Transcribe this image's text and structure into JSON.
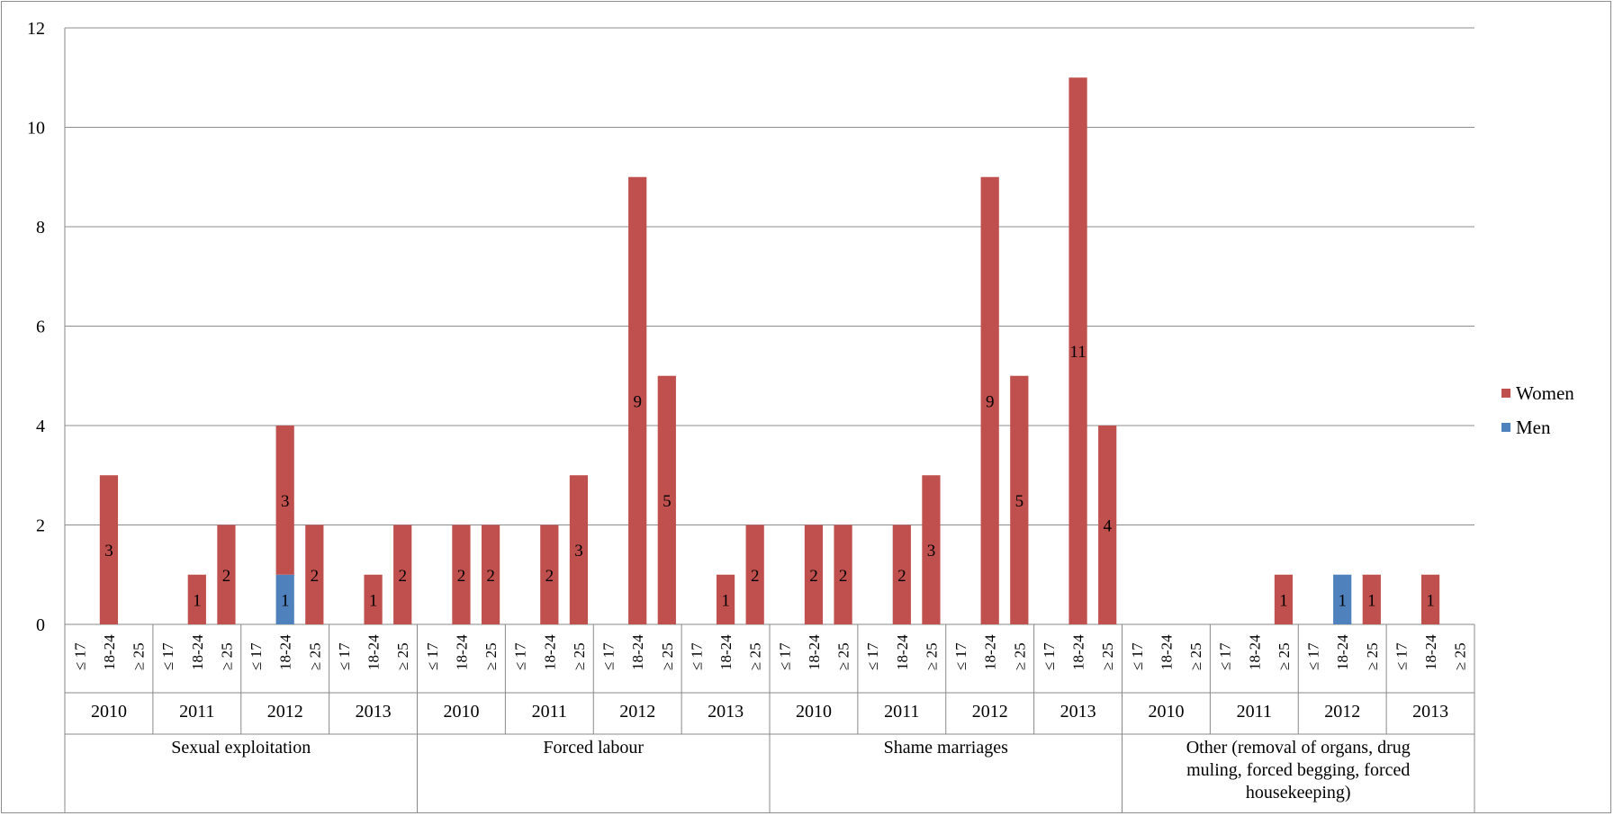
{
  "chart_data": {
    "type": "bar",
    "stacked": true,
    "title": "",
    "ylabel": "",
    "xlabel": "",
    "ylim": [
      0,
      12
    ],
    "y_ticks": [
      0,
      2,
      4,
      6,
      8,
      10,
      12
    ],
    "grid": true,
    "legend_position": "right",
    "groups": [
      "Sexual exploitation",
      "Forced labour",
      "Shame marriages",
      "Other (removal of organs, drug muling, forced begging, forced housekeeping)"
    ],
    "years": [
      "2010",
      "2011",
      "2012",
      "2013"
    ],
    "age_groups": [
      "≤ 17",
      "18-24",
      "≥ 25"
    ],
    "series": [
      {
        "name": "Women",
        "color": "#c0504d",
        "values": [
          [
            [
              0,
              3,
              0
            ],
            [
              0,
              1,
              2
            ],
            [
              0,
              3,
              2
            ],
            [
              0,
              1,
              2
            ]
          ],
          [
            [
              0,
              2,
              2
            ],
            [
              0,
              2,
              3
            ],
            [
              0,
              9,
              5
            ],
            [
              0,
              1,
              2
            ]
          ],
          [
            [
              0,
              2,
              2
            ],
            [
              0,
              2,
              3
            ],
            [
              0,
              9,
              5
            ],
            [
              0,
              11,
              4
            ]
          ],
          [
            [
              0,
              0,
              0
            ],
            [
              0,
              0,
              1
            ],
            [
              0,
              0,
              1
            ],
            [
              0,
              1,
              0
            ]
          ]
        ]
      },
      {
        "name": "Men",
        "color": "#4f81bd",
        "values": [
          [
            [
              0,
              0,
              0
            ],
            [
              0,
              0,
              0
            ],
            [
              0,
              1,
              0
            ],
            [
              0,
              0,
              0
            ]
          ],
          [
            [
              0,
              0,
              0
            ],
            [
              0,
              0,
              0
            ],
            [
              0,
              0,
              0
            ],
            [
              0,
              0,
              0
            ]
          ],
          [
            [
              0,
              0,
              0
            ],
            [
              0,
              0,
              0
            ],
            [
              0,
              0,
              0
            ],
            [
              0,
              0,
              0
            ]
          ],
          [
            [
              0,
              0,
              0
            ],
            [
              0,
              0,
              0
            ],
            [
              0,
              1,
              0
            ],
            [
              0,
              0,
              0
            ]
          ]
        ]
      }
    ]
  }
}
